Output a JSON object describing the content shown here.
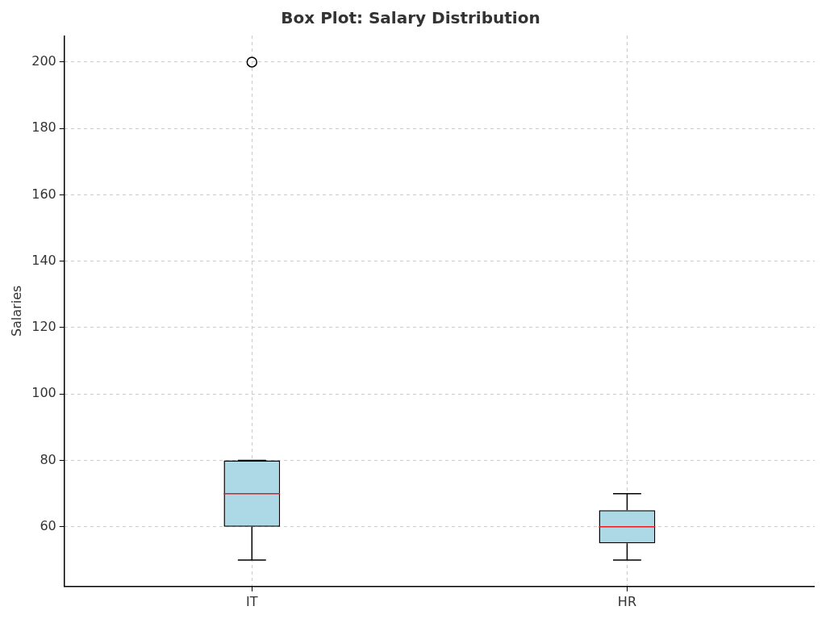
{
  "chart_data": {
    "type": "box",
    "title": "Box Plot: Salary Distribution",
    "y_label": "Salaries",
    "categories": [
      "IT",
      "HR"
    ],
    "boxes": [
      {
        "whislo": 50,
        "q1": 60,
        "med": 70,
        "q3": 80,
        "whishi": 80,
        "fliers": [
          200
        ]
      },
      {
        "whislo": 50,
        "q1": 55,
        "med": 60,
        "q3": 65,
        "whishi": 70,
        "fliers": []
      }
    ],
    "color": "#add8e6",
    "ylim": [
      42,
      208
    ],
    "yticks": [
      60,
      80,
      100,
      120,
      140,
      160,
      180,
      200
    ],
    "grid": true
  }
}
